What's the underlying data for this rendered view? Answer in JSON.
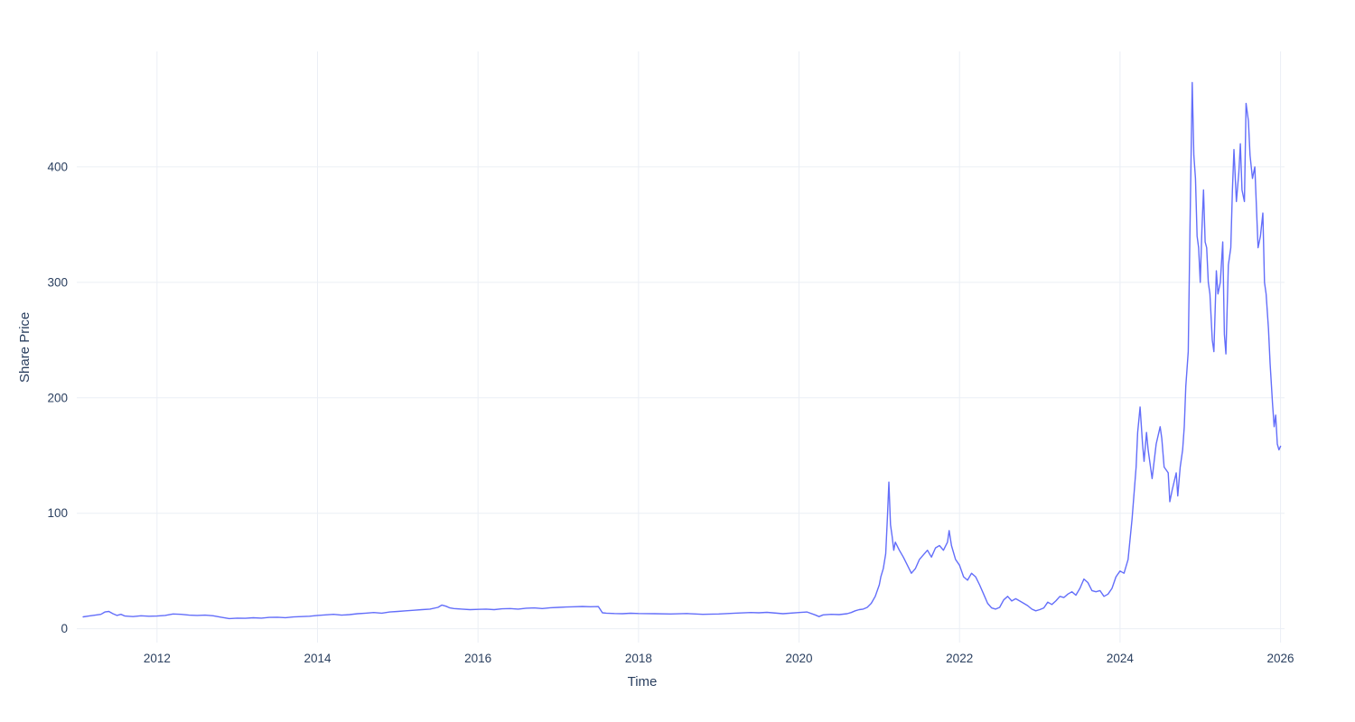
{
  "chart_data": {
    "type": "line",
    "title": "",
    "xlabel": "Time",
    "ylabel": "Share Price",
    "x_range": [
      2011.0,
      2026.05
    ],
    "y_range": [
      -12,
      500
    ],
    "x_ticks": [
      2012,
      2014,
      2016,
      2018,
      2020,
      2022,
      2024,
      2026
    ],
    "y_ticks": [
      0,
      100,
      200,
      300,
      400
    ],
    "grid": true,
    "legend_position": "none",
    "line_color": "#636EFA",
    "grid_color": "#EBEFF5",
    "axis_text_color": "#2a3f5f",
    "background_color": "#ffffff",
    "series": [
      {
        "name": "Share Price",
        "x": [
          2011.08,
          2011.15,
          2011.2,
          2011.3,
          2011.35,
          2011.4,
          2011.45,
          2011.5,
          2011.55,
          2011.6,
          2011.7,
          2011.8,
          2011.9,
          2012.0,
          2012.1,
          2012.2,
          2012.3,
          2012.4,
          2012.5,
          2012.6,
          2012.7,
          2012.8,
          2012.9,
          2013.0,
          2013.1,
          2013.2,
          2013.3,
          2013.4,
          2013.5,
          2013.6,
          2013.7,
          2013.8,
          2013.9,
          2014.0,
          2014.1,
          2014.2,
          2014.3,
          2014.4,
          2014.5,
          2014.6,
          2014.7,
          2014.8,
          2014.9,
          2015.0,
          2015.1,
          2015.2,
          2015.3,
          2015.4,
          2015.5,
          2015.55,
          2015.6,
          2015.65,
          2015.7,
          2015.8,
          2015.9,
          2016.0,
          2016.1,
          2016.2,
          2016.3,
          2016.4,
          2016.5,
          2016.6,
          2016.7,
          2016.8,
          2016.9,
          2017.0,
          2017.1,
          2017.2,
          2017.3,
          2017.4,
          2017.5,
          2017.55,
          2017.6,
          2017.7,
          2017.8,
          2017.9,
          2018.0,
          2018.2,
          2018.4,
          2018.6,
          2018.8,
          2019.0,
          2019.2,
          2019.4,
          2019.5,
          2019.6,
          2019.8,
          2020.0,
          2020.1,
          2020.2,
          2020.25,
          2020.3,
          2020.4,
          2020.5,
          2020.6,
          2020.65,
          2020.7,
          2020.75,
          2020.8,
          2020.85,
          2020.9,
          2020.95,
          2021.0,
          2021.02,
          2021.05,
          2021.08,
          2021.1,
          2021.12,
          2021.14,
          2021.16,
          2021.18,
          2021.2,
          2021.25,
          2021.3,
          2021.35,
          2021.4,
          2021.45,
          2021.5,
          2021.55,
          2021.6,
          2021.65,
          2021.7,
          2021.75,
          2021.8,
          2021.85,
          2021.87,
          2021.9,
          2021.95,
          2022.0,
          2022.05,
          2022.1,
          2022.15,
          2022.2,
          2022.25,
          2022.3,
          2022.35,
          2022.4,
          2022.45,
          2022.5,
          2022.55,
          2022.6,
          2022.65,
          2022.7,
          2022.75,
          2022.8,
          2022.85,
          2022.9,
          2022.95,
          2023.0,
          2023.05,
          2023.1,
          2023.15,
          2023.2,
          2023.25,
          2023.3,
          2023.35,
          2023.4,
          2023.45,
          2023.5,
          2023.55,
          2023.6,
          2023.65,
          2023.7,
          2023.75,
          2023.8,
          2023.85,
          2023.9,
          2023.95,
          2024.0,
          2024.05,
          2024.1,
          2024.15,
          2024.2,
          2024.22,
          2024.25,
          2024.28,
          2024.3,
          2024.33,
          2024.35,
          2024.4,
          2024.45,
          2024.5,
          2024.52,
          2024.55,
          2024.6,
          2024.62,
          2024.65,
          2024.7,
          2024.72,
          2024.75,
          2024.78,
          2024.8,
          2024.82,
          2024.85,
          2024.87,
          2024.9,
          2024.92,
          2024.94,
          2024.96,
          2024.98,
          2025.0,
          2025.02,
          2025.04,
          2025.06,
          2025.08,
          2025.1,
          2025.12,
          2025.15,
          2025.17,
          2025.2,
          2025.22,
          2025.25,
          2025.28,
          2025.3,
          2025.32,
          2025.35,
          2025.38,
          2025.4,
          2025.42,
          2025.45,
          2025.48,
          2025.5,
          2025.52,
          2025.55,
          2025.57,
          2025.6,
          2025.62,
          2025.65,
          2025.68,
          2025.7,
          2025.72,
          2025.75,
          2025.78,
          2025.8,
          2025.82,
          2025.85,
          2025.87,
          2025.9,
          2025.92,
          2025.94,
          2025.96,
          2025.98,
          2026.0
        ],
        "y": [
          10.3,
          11.0,
          11.5,
          12.5,
          14.5,
          15.0,
          13.0,
          11.5,
          12.5,
          11.0,
          10.5,
          11.2,
          10.8,
          11.0,
          11.5,
          12.8,
          12.5,
          11.8,
          11.5,
          11.8,
          11.2,
          10.0,
          8.8,
          9.2,
          9.0,
          9.5,
          9.2,
          9.8,
          10.0,
          9.6,
          10.2,
          10.5,
          10.8,
          11.5,
          12.0,
          12.5,
          11.8,
          12.2,
          13.0,
          13.5,
          14.0,
          13.5,
          14.5,
          15.0,
          15.5,
          16.0,
          16.5,
          17.0,
          18.5,
          20.5,
          19.5,
          18.0,
          17.5,
          17.0,
          16.5,
          16.8,
          17.0,
          16.5,
          17.2,
          17.5,
          17.0,
          17.8,
          18.0,
          17.5,
          18.2,
          18.5,
          18.8,
          19.0,
          19.3,
          19.0,
          19.2,
          13.8,
          13.5,
          13.2,
          13.0,
          13.4,
          13.2,
          13.0,
          12.8,
          13.2,
          12.5,
          12.8,
          13.5,
          14.0,
          13.8,
          14.2,
          13.0,
          14.0,
          14.5,
          12.0,
          10.5,
          12.0,
          12.5,
          12.2,
          13.0,
          14.0,
          15.5,
          16.5,
          17.0,
          18.5,
          22.0,
          28.0,
          38.0,
          45,
          52,
          65,
          95,
          127,
          90,
          80,
          68,
          75,
          68,
          62,
          55,
          48,
          52,
          60,
          64,
          68,
          62,
          70,
          72,
          68,
          75,
          85,
          72,
          60,
          55,
          45,
          42,
          48,
          45,
          38,
          30,
          22,
          18,
          17,
          18.5,
          25,
          28,
          24,
          26,
          24,
          22,
          20,
          17,
          15.5,
          16.5,
          18,
          23,
          21,
          24,
          28,
          27,
          30,
          32,
          29,
          35,
          43,
          40,
          33,
          32,
          33,
          28,
          30,
          35,
          45,
          50,
          48,
          60,
          95,
          140,
          170,
          192,
          160,
          145,
          170,
          155,
          130,
          160,
          175,
          165,
          140,
          135,
          110,
          120,
          135,
          115,
          140,
          155,
          175,
          210,
          240,
          340,
          473,
          410,
          390,
          340,
          330,
          300,
          345,
          380,
          335,
          330,
          300,
          290,
          250,
          240,
          310,
          290,
          300,
          335,
          255,
          238,
          315,
          330,
          380,
          415,
          370,
          395,
          420,
          380,
          370,
          455,
          440,
          410,
          390,
          400,
          365,
          330,
          340,
          360,
          300,
          290,
          260,
          230,
          195,
          175,
          185,
          160,
          155,
          158
        ]
      }
    ]
  }
}
